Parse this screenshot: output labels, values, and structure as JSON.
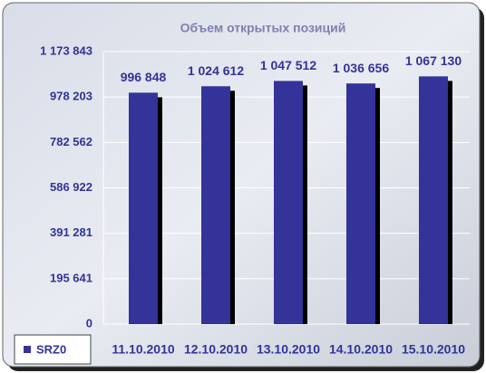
{
  "chart_data": {
    "type": "bar",
    "title": "Объем открытых позиций",
    "categories": [
      "11.10.2010",
      "12.10.2010",
      "13.10.2010",
      "14.10.2010",
      "15.10.2010"
    ],
    "series": [
      {
        "name": "SRZ0",
        "color": "#333399",
        "values": [
          996848,
          1024612,
          1047512,
          1036656,
          1067130
        ],
        "value_labels": [
          "996 848",
          "1 024 612",
          "1 047 512",
          "1 036 656",
          "1 067 130"
        ]
      }
    ],
    "ylim": [
      0,
      1173843
    ],
    "yticks": [
      0,
      {
        "value": 195641,
        "label": "195 641"
      },
      {
        "value": 391281,
        "label": "391 281"
      },
      {
        "value": 586922,
        "label": "586 922"
      },
      {
        "value": 782562,
        "label": "782 562"
      },
      {
        "value": 978203,
        "label": "978 203"
      },
      {
        "value": 1173843,
        "label": "1 173 843"
      }
    ],
    "grid": true,
    "legend": "bottom-left"
  }
}
